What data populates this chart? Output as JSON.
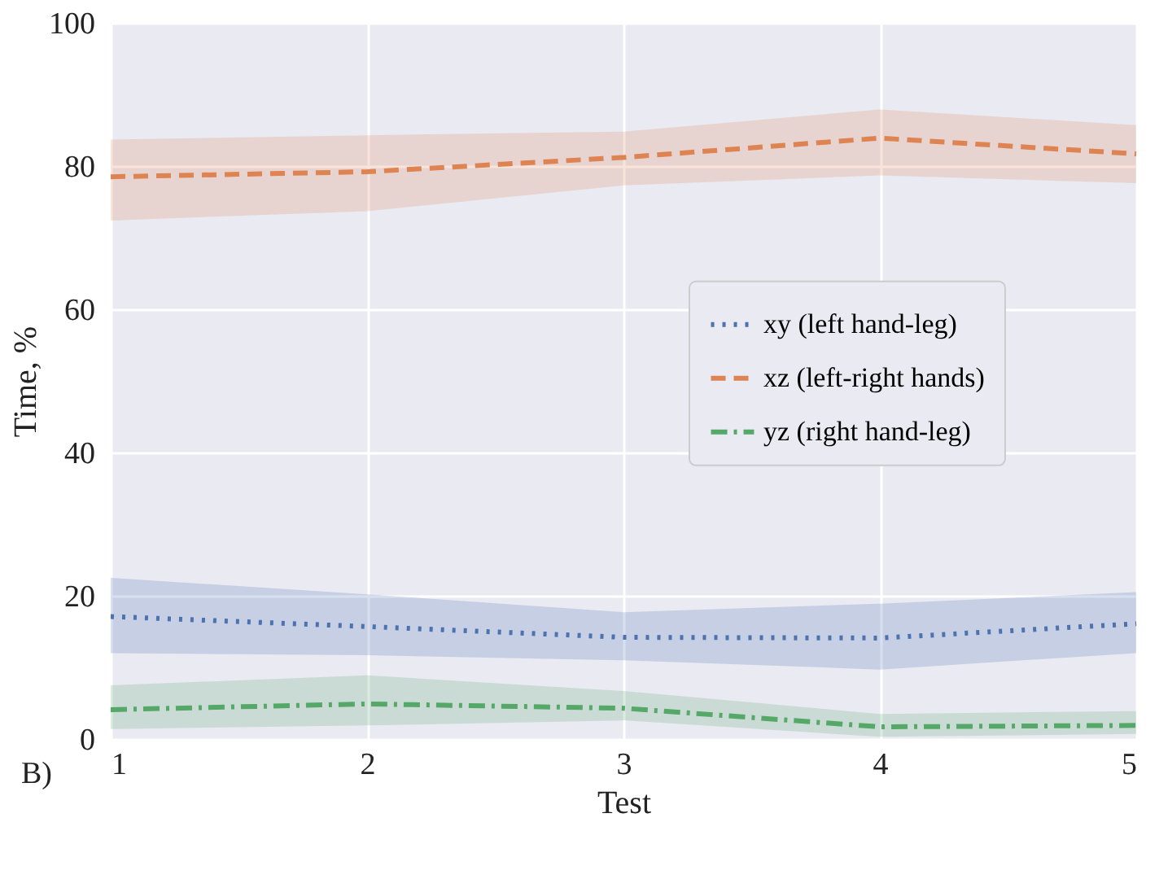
{
  "chart_data": {
    "type": "line",
    "xlabel": "Test",
    "ylabel": "Time, %",
    "x": [
      1,
      2,
      3,
      4,
      5
    ],
    "series": [
      {
        "name": "xy (left hand-leg)",
        "color": "#4c72b0",
        "line_style": "dotted",
        "values": [
          17.1,
          15.7,
          14.2,
          14.1,
          16.1
        ],
        "lower": [
          12.0,
          11.7,
          11.0,
          9.7,
          12.0
        ],
        "upper": [
          22.5,
          20.2,
          17.7,
          18.9,
          20.5
        ]
      },
      {
        "name": "xz (left-right hands)",
        "color": "#dd8452",
        "line_style": "dashed",
        "values": [
          78.5,
          79.2,
          81.2,
          83.9,
          81.7
        ],
        "lower": [
          72.4,
          73.7,
          77.3,
          78.7,
          77.6
        ],
        "upper": [
          83.7,
          84.3,
          84.8,
          87.9,
          85.7
        ]
      },
      {
        "name": "yz (right hand-leg)",
        "color": "#55a868",
        "line_style": "dashdot",
        "values": [
          4.1,
          4.9,
          4.3,
          1.7,
          1.9
        ],
        "lower": [
          1.4,
          1.9,
          2.6,
          0.3,
          0.7
        ],
        "upper": [
          7.5,
          8.9,
          6.7,
          3.5,
          3.9
        ]
      }
    ],
    "xlim": [
      1,
      5
    ],
    "xticks": [
      1,
      2,
      3,
      4,
      5
    ],
    "ylim": [
      0,
      100
    ],
    "yticks": [
      0,
      20,
      40,
      60,
      80,
      100
    ],
    "grid": true,
    "legend": "right",
    "marker": "none",
    "annotations": [
      "B)"
    ]
  }
}
